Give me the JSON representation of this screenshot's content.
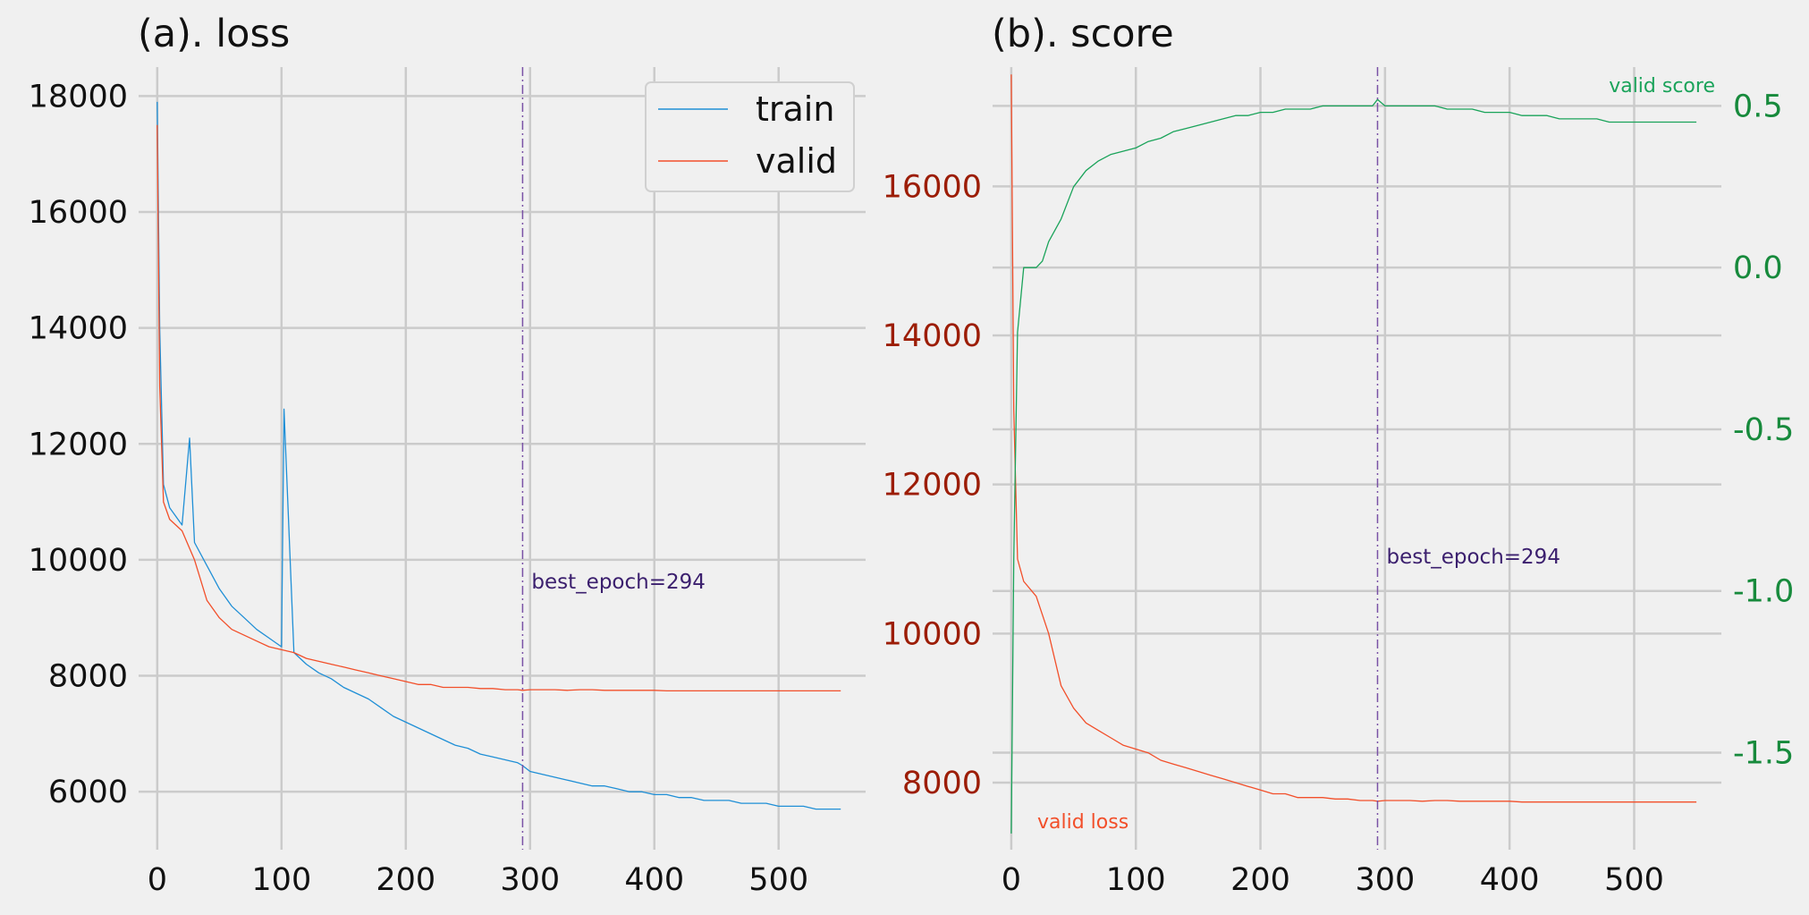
{
  "chart_data": [
    {
      "type": "line",
      "title": "(a). loss",
      "xlim": [
        -15,
        570
      ],
      "ylim": [
        5000,
        18500
      ],
      "x_ticks": [
        0,
        100,
        200,
        300,
        400,
        500
      ],
      "y_ticks": [
        6000,
        8000,
        10000,
        12000,
        14000,
        16000,
        18000
      ],
      "legend": {
        "placement": "top-right",
        "entries": [
          "train",
          "valid"
        ]
      },
      "grid": true,
      "best_epoch": 294,
      "best_epoch_label": "best_epoch=294",
      "series": [
        {
          "name": "train",
          "color": "#1f8fd6",
          "x": [
            0,
            2,
            5,
            10,
            20,
            26,
            30,
            40,
            50,
            60,
            70,
            80,
            90,
            100,
            102,
            110,
            120,
            130,
            140,
            150,
            160,
            170,
            180,
            190,
            200,
            210,
            220,
            230,
            240,
            250,
            260,
            270,
            280,
            290,
            294,
            300,
            310,
            320,
            330,
            340,
            350,
            360,
            370,
            380,
            390,
            400,
            410,
            420,
            430,
            440,
            450,
            460,
            470,
            480,
            490,
            500,
            510,
            520,
            530,
            540,
            550
          ],
          "y": [
            17900,
            14000,
            11300,
            10900,
            10600,
            12100,
            10300,
            9900,
            9500,
            9200,
            9000,
            8800,
            8650,
            8500,
            12600,
            8400,
            8200,
            8050,
            7950,
            7800,
            7700,
            7600,
            7450,
            7300,
            7200,
            7100,
            7000,
            6900,
            6800,
            6750,
            6650,
            6600,
            6550,
            6500,
            6450,
            6350,
            6300,
            6250,
            6200,
            6150,
            6100,
            6100,
            6050,
            6000,
            6000,
            5950,
            5950,
            5900,
            5900,
            5850,
            5850,
            5850,
            5800,
            5800,
            5800,
            5750,
            5750,
            5750,
            5700,
            5700,
            5700
          ]
        },
        {
          "name": "valid",
          "color": "#f24f2a",
          "x": [
            0,
            2,
            5,
            10,
            20,
            30,
            40,
            50,
            60,
            70,
            80,
            90,
            100,
            110,
            120,
            130,
            140,
            150,
            160,
            170,
            180,
            190,
            200,
            210,
            220,
            230,
            240,
            250,
            260,
            270,
            280,
            290,
            294,
            300,
            310,
            320,
            330,
            340,
            350,
            360,
            370,
            380,
            390,
            400,
            410,
            420,
            430,
            440,
            450,
            460,
            470,
            480,
            490,
            500,
            510,
            520,
            530,
            540,
            550
          ],
          "y": [
            17500,
            13000,
            11000,
            10700,
            10500,
            10000,
            9300,
            9000,
            8800,
            8700,
            8600,
            8500,
            8450,
            8400,
            8300,
            8250,
            8200,
            8150,
            8100,
            8050,
            8000,
            7950,
            7900,
            7850,
            7850,
            7800,
            7800,
            7800,
            7780,
            7780,
            7760,
            7760,
            7750,
            7760,
            7760,
            7760,
            7750,
            7760,
            7760,
            7750,
            7750,
            7750,
            7750,
            7750,
            7740,
            7740,
            7740,
            7740,
            7740,
            7740,
            7740,
            7740,
            7740,
            7740,
            7740,
            7740,
            7740,
            7740,
            7740
          ]
        }
      ]
    },
    {
      "type": "line",
      "title": "(b). score",
      "xlim": [
        -15,
        570
      ],
      "ylim_left": [
        7100,
        17600
      ],
      "ylim_right": [
        -1.8,
        0.62
      ],
      "x_ticks": [
        0,
        100,
        200,
        300,
        400,
        500
      ],
      "y_ticks_left": [
        8000,
        10000,
        12000,
        14000,
        16000
      ],
      "y_ticks_right": [
        0.5,
        0.0,
        -0.5,
        -1.0,
        -1.5
      ],
      "y_tick_labels_right": [
        "0.5",
        "0.0",
        "-0.5",
        "-1.0",
        "-1.5"
      ],
      "grid": true,
      "best_epoch": 294,
      "best_epoch_label": "best_epoch=294",
      "series": [
        {
          "name": "valid loss",
          "axis": "left",
          "color": "#f24f2a",
          "x": [
            0,
            2,
            5,
            10,
            20,
            30,
            40,
            50,
            60,
            70,
            80,
            90,
            100,
            110,
            120,
            130,
            140,
            150,
            160,
            170,
            180,
            190,
            200,
            210,
            220,
            230,
            240,
            250,
            260,
            270,
            280,
            290,
            294,
            300,
            310,
            320,
            330,
            340,
            350,
            360,
            370,
            380,
            390,
            400,
            410,
            420,
            430,
            440,
            450,
            460,
            470,
            480,
            490,
            500,
            510,
            520,
            530,
            540,
            550
          ],
          "y": [
            17500,
            13000,
            11000,
            10700,
            10500,
            10000,
            9300,
            9000,
            8800,
            8700,
            8600,
            8500,
            8450,
            8400,
            8300,
            8250,
            8200,
            8150,
            8100,
            8050,
            8000,
            7950,
            7900,
            7850,
            7850,
            7800,
            7800,
            7800,
            7780,
            7780,
            7760,
            7760,
            7750,
            7760,
            7760,
            7760,
            7750,
            7760,
            7760,
            7750,
            7750,
            7750,
            7750,
            7750,
            7740,
            7740,
            7740,
            7740,
            7740,
            7740,
            7740,
            7740,
            7740,
            7740,
            7740,
            7740,
            7740,
            7740,
            7740
          ]
        },
        {
          "name": "valid score",
          "axis": "right",
          "color": "#1aa35a",
          "x": [
            0,
            2,
            5,
            10,
            15,
            20,
            25,
            30,
            40,
            50,
            60,
            70,
            80,
            90,
            100,
            110,
            120,
            130,
            140,
            150,
            160,
            170,
            180,
            190,
            200,
            210,
            220,
            230,
            240,
            250,
            260,
            270,
            280,
            290,
            294,
            300,
            310,
            320,
            330,
            340,
            350,
            360,
            370,
            380,
            390,
            400,
            410,
            420,
            430,
            440,
            450,
            460,
            470,
            480,
            490,
            500,
            510,
            520,
            530,
            540,
            550
          ],
          "y": [
            -1.75,
            -0.9,
            -0.2,
            0.0,
            0.0,
            0.0,
            0.02,
            0.08,
            0.15,
            0.25,
            0.3,
            0.33,
            0.35,
            0.36,
            0.37,
            0.39,
            0.4,
            0.42,
            0.43,
            0.44,
            0.45,
            0.46,
            0.47,
            0.47,
            0.48,
            0.48,
            0.49,
            0.49,
            0.49,
            0.5,
            0.5,
            0.5,
            0.5,
            0.5,
            0.52,
            0.5,
            0.5,
            0.5,
            0.5,
            0.5,
            0.49,
            0.49,
            0.49,
            0.48,
            0.48,
            0.48,
            0.47,
            0.47,
            0.47,
            0.46,
            0.46,
            0.46,
            0.46,
            0.45,
            0.45,
            0.45,
            0.45,
            0.45,
            0.45,
            0.45,
            0.45
          ]
        }
      ]
    }
  ],
  "colors": {
    "background": "#f0f0f0",
    "grid": "#cbcbcb",
    "best_line": "#7a52a6",
    "best_label": "#3b1f6e",
    "left_axis_b": "#9c1d06",
    "right_axis_b": "#178a3c",
    "valid_loss_label": "#f24f2a",
    "valid_score_label": "#1aa35a"
  }
}
